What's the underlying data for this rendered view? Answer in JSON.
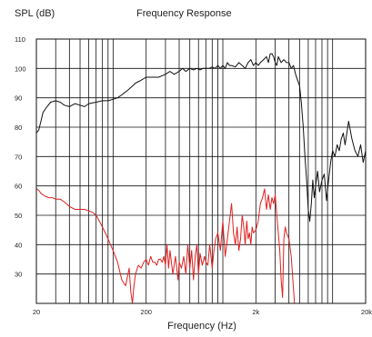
{
  "chart_data": {
    "type": "line",
    "title": "Frequency Response",
    "ylabel": "SPL (dB)",
    "xlabel": "Frequency (Hz)",
    "xscale": "log",
    "xlim": [
      20,
      20000
    ],
    "ylim": [
      20,
      110
    ],
    "grid": true,
    "y_ticks": [
      "110",
      "100",
      "90",
      "80",
      "70",
      "60",
      "50",
      "40",
      "30"
    ],
    "x_ticks": [
      "20",
      "200",
      "2k",
      "20k"
    ],
    "series": [
      {
        "color": "#111111",
        "x": [
          20,
          21,
          22,
          23,
          25,
          27,
          30,
          33,
          36,
          40,
          45,
          50,
          55,
          60,
          70,
          80,
          90,
          100,
          110,
          120,
          130,
          140,
          150,
          160,
          180,
          200,
          230,
          260,
          300,
          330,
          360,
          400,
          430,
          460,
          500,
          540,
          580,
          620,
          660,
          700,
          750,
          800,
          850,
          900,
          950,
          1000,
          1050,
          1100,
          1150,
          1200,
          1300,
          1400,
          1500,
          1600,
          1700,
          1800,
          1900,
          2000,
          2100,
          2200,
          2350,
          2500,
          2600,
          2700,
          2800,
          2900,
          3000,
          3100,
          3200,
          3400,
          3600,
          3800,
          4000,
          4200,
          4400,
          4600,
          4800,
          5000,
          5200,
          5400,
          5600,
          5800,
          6000,
          6200,
          6400,
          6600,
          6800,
          7000,
          7300,
          7600,
          8000,
          8400,
          8800,
          9200,
          9600,
          10000,
          10500,
          11000,
          11500,
          12000,
          12500,
          13000,
          14000,
          15000,
          16000,
          17000,
          18000,
          19000,
          20000
        ],
        "y": [
          78,
          79,
          82,
          85,
          87,
          88.5,
          89,
          88.5,
          87.5,
          87,
          88,
          87.5,
          87,
          88,
          88.5,
          89,
          89,
          89.5,
          90,
          91,
          92,
          93,
          94,
          95,
          96,
          97,
          97,
          97,
          98,
          99,
          98,
          99,
          100,
          99,
          100,
          99.5,
          100,
          99.5,
          100,
          100,
          100,
          100.5,
          100,
          101,
          100,
          101,
          100,
          102,
          101,
          101,
          100.5,
          102,
          101,
          100,
          102,
          103,
          101,
          102,
          101,
          102,
          103,
          104,
          102,
          105,
          105,
          104,
          102,
          101,
          104,
          102,
          103,
          102,
          102,
          100,
          101,
          98,
          96,
          94,
          88,
          80,
          70,
          62,
          52,
          48,
          54,
          62,
          56,
          60,
          65,
          58,
          62,
          64,
          55,
          62,
          68,
          72,
          70,
          74,
          72,
          76,
          78,
          74,
          82,
          76,
          72,
          70,
          74,
          68,
          72
        ]
      },
      {
        "color": "#e02020",
        "x": [
          20,
          21,
          22,
          24,
          26,
          28,
          30,
          33,
          36,
          40,
          45,
          50,
          55,
          60,
          65,
          70,
          75,
          80,
          85,
          90,
          100,
          110,
          120,
          130,
          140,
          145,
          150,
          155,
          160,
          170,
          180,
          190,
          200,
          210,
          220,
          230,
          240,
          250,
          260,
          270,
          280,
          290,
          300,
          310,
          320,
          330,
          350,
          370,
          390,
          400,
          420,
          440,
          460,
          480,
          500,
          520,
          540,
          560,
          580,
          600,
          620,
          650,
          680,
          700,
          730,
          760,
          800,
          830,
          860,
          900,
          950,
          1000,
          1050,
          1100,
          1150,
          1200,
          1250,
          1300,
          1350,
          1400,
          1450,
          1500,
          1550,
          1600,
          1650,
          1700,
          1750,
          1800,
          1850,
          1900,
          2000,
          2100,
          2200,
          2300,
          2400,
          2500,
          2600,
          2700,
          2800,
          2900,
          3000,
          3100,
          3200,
          3300,
          3400,
          3500,
          3600,
          3700,
          3800,
          4000,
          4200,
          4500
        ],
        "y": [
          59,
          58.5,
          57.5,
          56.5,
          56,
          56,
          55.5,
          55.5,
          54.5,
          53,
          52,
          52,
          52,
          51.5,
          51,
          50,
          48,
          46,
          44,
          42,
          38,
          34,
          28,
          26,
          32,
          24,
          20,
          26,
          30,
          33,
          32,
          34,
          35,
          33,
          36,
          34,
          34,
          33,
          35,
          35,
          34,
          36,
          33,
          40,
          32,
          38,
          30,
          36,
          28,
          34,
          32,
          36,
          30,
          40,
          32,
          38,
          28,
          36,
          40,
          30,
          37,
          33,
          36,
          34,
          33,
          40,
          32,
          38,
          42,
          44,
          38,
          48,
          36,
          42,
          48,
          54,
          44,
          40,
          46,
          38,
          42,
          50,
          46,
          40,
          48,
          42,
          44,
          40,
          46,
          44,
          45,
          48,
          54,
          56,
          59,
          52,
          57,
          52,
          56,
          54,
          57,
          50,
          44,
          38,
          28,
          22,
          42,
          46,
          44,
          42,
          36,
          20
        ]
      }
    ]
  }
}
